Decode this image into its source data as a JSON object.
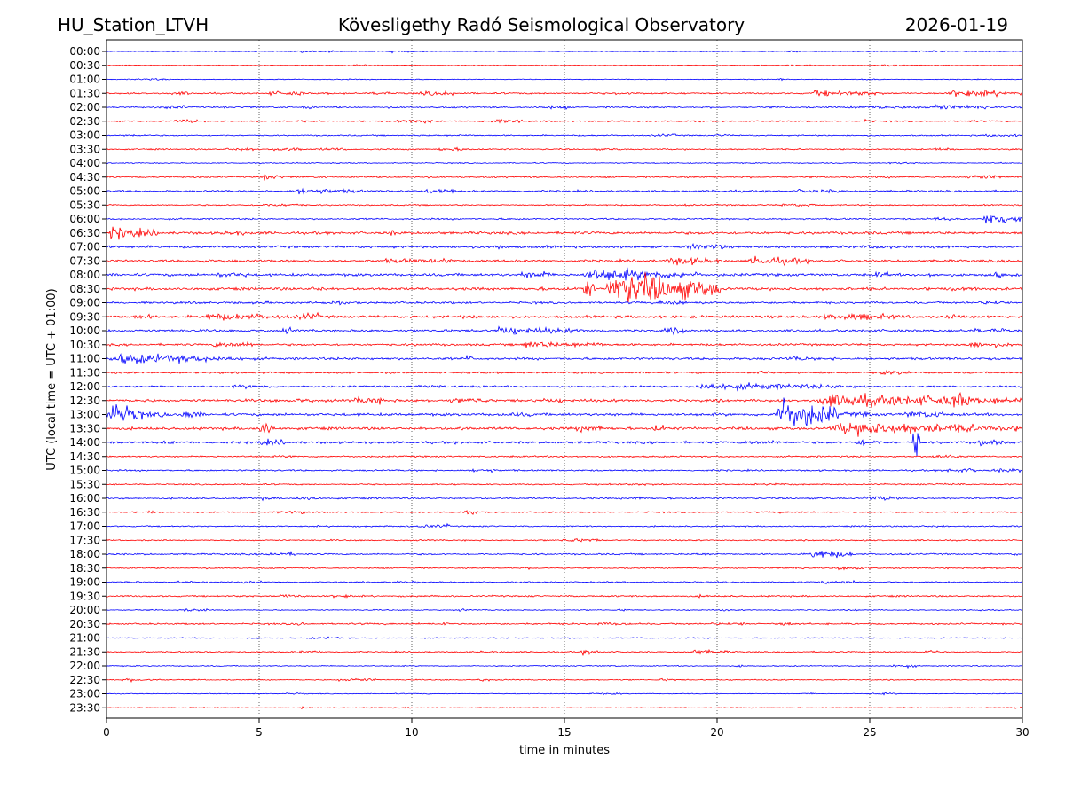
{
  "chart_data": {
    "type": "line",
    "title_left": "HU_Station_LTVH",
    "title_center": "Kövesligethy Radó Seismological Observatory",
    "title_right": "2026-01-19",
    "xlabel": "time in minutes",
    "ylabel": "UTC (local time = UTC + 01:00)",
    "xlim": [
      0,
      30
    ],
    "x_ticks": [
      "0",
      "5",
      "10",
      "15",
      "20",
      "25",
      "30"
    ],
    "grid": "vertical dotted",
    "colors": {
      "even_rows": "#0000ff",
      "odd_rows": "#ff0000"
    },
    "rows": [
      "00:00",
      "00:30",
      "01:00",
      "01:30",
      "02:00",
      "02:30",
      "03:00",
      "03:30",
      "04:00",
      "04:30",
      "05:00",
      "05:30",
      "06:00",
      "06:30",
      "07:00",
      "07:30",
      "08:00",
      "08:30",
      "09:00",
      "09:30",
      "10:00",
      "10:30",
      "11:00",
      "11:30",
      "12:00",
      "12:30",
      "13:00",
      "13:30",
      "14:00",
      "14:30",
      "15:00",
      "15:30",
      "16:00",
      "16:30",
      "17:00",
      "17:30",
      "18:00",
      "18:30",
      "19:00",
      "19:30",
      "20:00",
      "20:30",
      "21:00",
      "21:30",
      "22:00",
      "22:30",
      "23:00",
      "23:30"
    ],
    "row_noise": [
      0.3,
      0.3,
      0.3,
      0.6,
      0.6,
      0.5,
      0.5,
      0.5,
      0.4,
      0.6,
      0.7,
      0.5,
      0.6,
      1.0,
      0.9,
      0.9,
      1.0,
      1.0,
      0.8,
      1.0,
      0.9,
      0.8,
      0.9,
      0.7,
      0.7,
      1.0,
      1.0,
      1.0,
      0.9,
      0.6,
      0.6,
      0.5,
      0.6,
      0.5,
      0.5,
      0.5,
      0.6,
      0.5,
      0.5,
      0.6,
      0.4,
      0.6,
      0.4,
      0.5,
      0.4,
      0.4,
      0.3,
      0.3
    ],
    "events": [
      {
        "row": "01:30",
        "start": 23.0,
        "end": 25.5,
        "amp": 2.5
      },
      {
        "row": "01:30",
        "start": 27.5,
        "end": 30.0,
        "amp": 3.0
      },
      {
        "row": "02:00",
        "start": 27.0,
        "end": 28.5,
        "amp": 2.5
      },
      {
        "row": "04:30",
        "start": 5.0,
        "end": 6.0,
        "amp": 2
      },
      {
        "row": "05:00",
        "start": 6.0,
        "end": 8.5,
        "amp": 2.5
      },
      {
        "row": "06:00",
        "start": 28.7,
        "end": 30.0,
        "amp": 6
      },
      {
        "row": "06:30",
        "start": 0.0,
        "end": 1.5,
        "amp": 5
      },
      {
        "row": "07:30",
        "start": 18.5,
        "end": 20.2,
        "amp": 3.5
      },
      {
        "row": "07:30",
        "start": 21.0,
        "end": 23.0,
        "amp": 4
      },
      {
        "row": "08:00",
        "start": 15.5,
        "end": 19.5,
        "amp": 5
      },
      {
        "row": "08:30",
        "start": 15.6,
        "end": 16.0,
        "amp": 9
      },
      {
        "row": "08:30",
        "start": 16.3,
        "end": 20.1,
        "amp": 13
      },
      {
        "row": "09:30",
        "start": 3.0,
        "end": 6.5,
        "amp": 3
      },
      {
        "row": "09:30",
        "start": 24.0,
        "end": 26.5,
        "amp": 3
      },
      {
        "row": "10:00",
        "start": 12.5,
        "end": 16.0,
        "amp": 3
      },
      {
        "row": "10:30",
        "start": 13.5,
        "end": 15.5,
        "amp": 3
      },
      {
        "row": "10:30",
        "start": 28.0,
        "end": 30.0,
        "amp": 2.5
      },
      {
        "row": "11:00",
        "start": 0.0,
        "end": 4.5,
        "amp": 4
      },
      {
        "row": "12:00",
        "start": 19.0,
        "end": 25.0,
        "amp": 3
      },
      {
        "row": "12:30",
        "start": 23.0,
        "end": 30.0,
        "amp": 5
      },
      {
        "row": "12:30",
        "start": 27.7,
        "end": 28.3,
        "amp": 9
      },
      {
        "row": "13:00",
        "start": 0.0,
        "end": 1.2,
        "amp": 9
      },
      {
        "row": "13:00",
        "start": 2.5,
        "end": 3.2,
        "amp": 4
      },
      {
        "row": "13:00",
        "start": 21.8,
        "end": 24.0,
        "amp": 13
      },
      {
        "row": "13:30",
        "start": 5.0,
        "end": 5.5,
        "amp": 7
      },
      {
        "row": "13:30",
        "start": 23.5,
        "end": 30.0,
        "amp": 5
      },
      {
        "row": "14:00",
        "start": 24.5,
        "end": 25.5,
        "amp": 3
      },
      {
        "row": "14:00",
        "start": 26.4,
        "end": 26.7,
        "amp": 16
      },
      {
        "row": "14:00",
        "start": 28.5,
        "end": 29.5,
        "amp": 3
      },
      {
        "row": "18:00",
        "start": 23.0,
        "end": 24.5,
        "amp": 4
      },
      {
        "row": "21:30",
        "start": 15.5,
        "end": 16.5,
        "amp": 2
      },
      {
        "row": "21:30",
        "start": 19.0,
        "end": 20.5,
        "amp": 2
      }
    ]
  }
}
